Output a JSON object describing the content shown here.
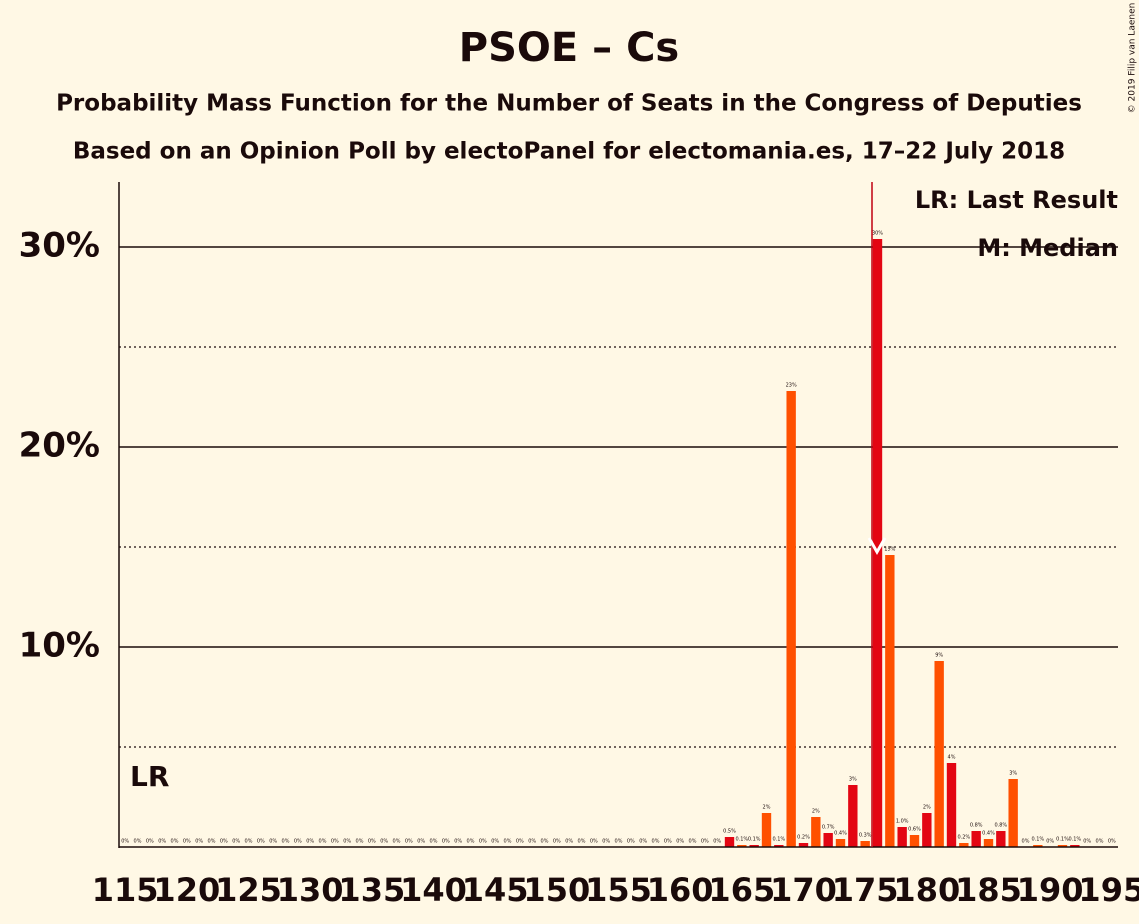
{
  "chart_data": {
    "type": "bar",
    "title": "PSOE – Cs",
    "subtitle": "Probability Mass Function for the Number of Seats in the Congress of Deputies",
    "subtitle2": "Based on an Opinion Poll by electoPanel for electomania.es, 17–22 July 2018",
    "copyright": "© 2019 Filip van Laenen",
    "legend_lr": "LR: Last Result",
    "legend_median": "M: Median",
    "lr_label": "LR",
    "colors": [
      "#e30613",
      "#ff5000"
    ],
    "x": [
      115,
      116,
      117,
      118,
      119,
      120,
      121,
      122,
      123,
      124,
      125,
      126,
      127,
      128,
      129,
      130,
      131,
      132,
      133,
      134,
      135,
      136,
      137,
      138,
      139,
      140,
      141,
      142,
      143,
      144,
      145,
      146,
      147,
      148,
      149,
      150,
      151,
      152,
      153,
      154,
      155,
      156,
      157,
      158,
      159,
      160,
      161,
      162,
      163,
      164,
      165,
      166,
      167,
      168,
      169,
      170,
      171,
      172,
      173,
      174,
      175,
      176,
      177,
      178,
      179,
      180,
      181,
      182,
      183,
      184,
      185,
      186,
      187,
      188,
      189,
      190,
      191,
      192,
      193,
      194,
      195
    ],
    "values": [
      0,
      0,
      0,
      0,
      0,
      0,
      0,
      0,
      0,
      0,
      0,
      0,
      0,
      0,
      0,
      0,
      0,
      0,
      0,
      0,
      0,
      0,
      0,
      0,
      0,
      0,
      0,
      0,
      0,
      0,
      0,
      0,
      0,
      0,
      0,
      0,
      0,
      0,
      0,
      0,
      0,
      0,
      0,
      0,
      0,
      0,
      0,
      0,
      0,
      0.5,
      0.1,
      0.1,
      1.7,
      0.1,
      22.8,
      0.2,
      1.5,
      0.7,
      0.4,
      3.1,
      0.3,
      30.4,
      14.6,
      1.0,
      0.6,
      1.7,
      9.3,
      4.2,
      0.2,
      0.8,
      0.4,
      0.8,
      3.4,
      0,
      0.1,
      0,
      0.1,
      0.1,
      0,
      0,
      0
    ],
    "value_labels": [
      "0%",
      "0%",
      "0%",
      "0%",
      "0%",
      "0%",
      "0%",
      "0%",
      "0%",
      "0%",
      "0%",
      "0%",
      "0%",
      "0%",
      "0%",
      "0%",
      "0%",
      "0%",
      "0%",
      "0%",
      "0%",
      "0%",
      "0%",
      "0%",
      "0%",
      "0%",
      "0%",
      "0%",
      "0%",
      "0%",
      "0%",
      "0%",
      "0%",
      "0%",
      "0%",
      "0%",
      "0%",
      "0%",
      "0%",
      "0%",
      "0%",
      "0%",
      "0%",
      "0%",
      "0%",
      "0%",
      "0%",
      "0%",
      "0%",
      "0.5%",
      "0.1%",
      "0.1%",
      "2%",
      "0.1%",
      "23%",
      "0.2%",
      "2%",
      "0.7%",
      "0.4%",
      "3%",
      "0.3%",
      "30%",
      "15%",
      "1.0%",
      "0.6%",
      "2%",
      "9%",
      "4%",
      "0.2%",
      "0.8%",
      "0.4%",
      "0.8%",
      "3%",
      "0%",
      "0.1%",
      "0%",
      "0.1%",
      "0.1%",
      "0%",
      "0%",
      "0%"
    ],
    "xlim": [
      114.5,
      195.5
    ],
    "xticks": [
      115,
      120,
      125,
      130,
      135,
      140,
      145,
      150,
      155,
      160,
      165,
      170,
      175,
      180,
      185,
      190,
      195
    ],
    "ylim": [
      0,
      33.25
    ],
    "yticks": [
      {
        "value": 10,
        "label": "10%"
      },
      {
        "value": 20,
        "label": "20%"
      },
      {
        "value": 30,
        "label": "30%"
      }
    ],
    "minor_yticks": [
      5,
      15,
      25
    ],
    "grid": true
  }
}
